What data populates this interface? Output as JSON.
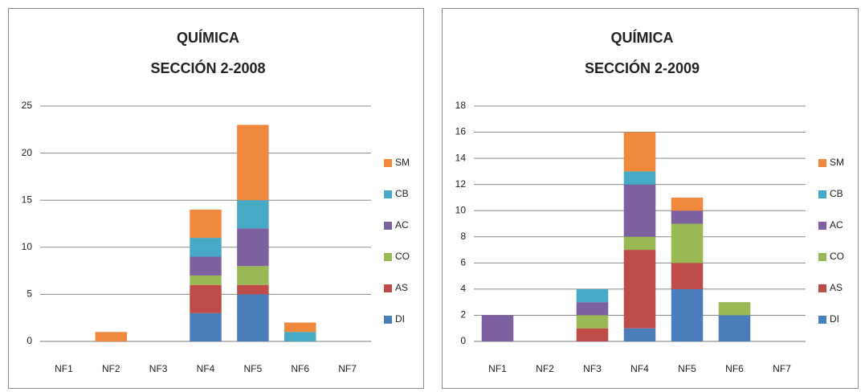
{
  "chart_data": [
    {
      "type": "bar",
      "stacked": true,
      "title": "QUÍMICA",
      "subtitle": "SECCIÓN 2-2008",
      "categories": [
        "NF1",
        "NF2",
        "NF3",
        "NF4",
        "NF5",
        "NF6",
        "NF7"
      ],
      "series": [
        {
          "name": "DI",
          "color": "#4a7ebb",
          "values": [
            0,
            0,
            0,
            3,
            5,
            0,
            0
          ]
        },
        {
          "name": "AS",
          "color": "#be4b48",
          "values": [
            0,
            0,
            0,
            3,
            1,
            0,
            0
          ]
        },
        {
          "name": "CO",
          "color": "#98b954",
          "values": [
            0,
            0,
            0,
            1,
            2,
            0,
            0
          ]
        },
        {
          "name": "AC",
          "color": "#7d60a0",
          "values": [
            0,
            0,
            0,
            2,
            4,
            0,
            0
          ]
        },
        {
          "name": "CB",
          "color": "#46aac5",
          "values": [
            0,
            0,
            0,
            2,
            3,
            1,
            0
          ]
        },
        {
          "name": "SM",
          "color": "#f0883e",
          "values": [
            0,
            1,
            0,
            3,
            8,
            1,
            0
          ]
        }
      ],
      "ylim": [
        0,
        25
      ],
      "yticks": [
        0,
        5,
        10,
        15,
        20,
        25
      ],
      "grid": true,
      "legend": "right"
    },
    {
      "type": "bar",
      "stacked": true,
      "title": "QUÍMICA",
      "subtitle": "SECCIÓN 2-2009",
      "categories": [
        "NF1",
        "NF2",
        "NF3",
        "NF4",
        "NF5",
        "NF6",
        "NF7"
      ],
      "series": [
        {
          "name": "DI",
          "color": "#4a7ebb",
          "values": [
            0,
            0,
            0,
            1,
            4,
            2,
            0
          ]
        },
        {
          "name": "AS",
          "color": "#be4b48",
          "values": [
            0,
            0,
            1,
            6,
            2,
            0,
            0
          ]
        },
        {
          "name": "CO",
          "color": "#98b954",
          "values": [
            0,
            0,
            1,
            1,
            3,
            1,
            0
          ]
        },
        {
          "name": "AC",
          "color": "#7d60a0",
          "values": [
            2,
            0,
            1,
            4,
            1,
            0,
            0
          ]
        },
        {
          "name": "CB",
          "color": "#46aac5",
          "values": [
            0,
            0,
            1,
            1,
            0,
            0,
            0
          ]
        },
        {
          "name": "SM",
          "color": "#f0883e",
          "values": [
            0,
            0,
            0,
            3,
            1,
            0,
            0
          ]
        }
      ],
      "ylim": [
        0,
        18
      ],
      "yticks": [
        0,
        2,
        4,
        6,
        8,
        10,
        12,
        14,
        16,
        18
      ],
      "grid": true,
      "legend": "right"
    }
  ]
}
